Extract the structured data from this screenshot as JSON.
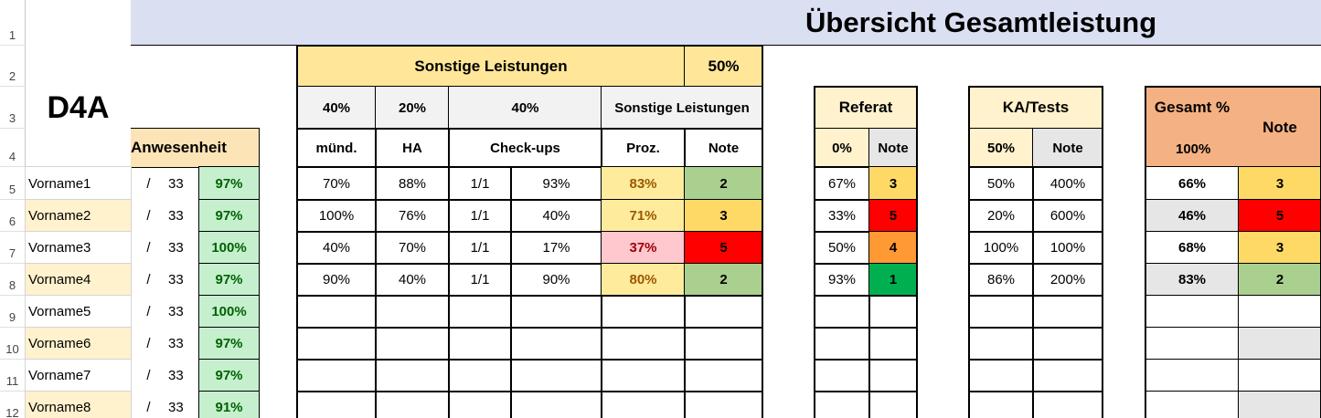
{
  "header": {
    "title": "Übersicht Gesamtleistung",
    "class_name": "D4A"
  },
  "row_numbers": [
    1,
    2,
    3,
    4,
    5,
    6,
    7,
    8,
    9,
    10,
    11,
    12
  ],
  "attendance": {
    "title": "Anwesenheit"
  },
  "sonstige": {
    "title": "Sonstige Leistungen",
    "weight": "50%",
    "weights": [
      "40%",
      "20%",
      "40%"
    ],
    "subtitle": "Sonstige Leistungen",
    "columns": [
      "münd.",
      "HA",
      "Check-ups",
      "Proz.",
      "Note"
    ]
  },
  "referat": {
    "title": "Referat",
    "weight": "0%",
    "note": "Note"
  },
  "ka": {
    "title": "KA/Tests",
    "weight": "50%",
    "note": "Note"
  },
  "gesamt": {
    "title": "Gesamt %",
    "weight": "100%",
    "note": "Note"
  },
  "grade_colors": {
    "1": "#00b050",
    "2": "#a9d08e",
    "3": "#ffd966",
    "4": "#ff9933",
    "5": "#ff0000"
  },
  "students": [
    {
      "name": "Vorname1",
      "slash": "/",
      "total": "33",
      "attendance": "97%",
      "muendl": "70%",
      "ha": "88%",
      "checkups_done": "1/1",
      "checkups": "93%",
      "proz": "83%",
      "proz_fill": "#ffeb9c",
      "proz_color": "#9c5700",
      "note": "2",
      "referat": "67%",
      "referat_note": "3",
      "ka": "50%",
      "ka_note": "400%",
      "gesamt": "66%",
      "gesamt_note": "3"
    },
    {
      "name": "Vorname2",
      "slash": "/",
      "total": "33",
      "attendance": "97%",
      "muendl": "100%",
      "ha": "76%",
      "checkups_done": "1/1",
      "checkups": "40%",
      "proz": "71%",
      "proz_fill": "#ffeb9c",
      "proz_color": "#9c5700",
      "note": "3",
      "referat": "33%",
      "referat_note": "5",
      "ka": "20%",
      "ka_note": "600%",
      "gesamt": "46%",
      "gesamt_note": "5"
    },
    {
      "name": "Vorname3",
      "slash": "/",
      "total": "33",
      "attendance": "100%",
      "muendl": "40%",
      "ha": "70%",
      "checkups_done": "1/1",
      "checkups": "17%",
      "proz": "37%",
      "proz_fill": "#ffc7ce",
      "proz_color": "#9c0006",
      "note": "5",
      "referat": "50%",
      "referat_note": "4",
      "ka": "100%",
      "ka_note": "100%",
      "gesamt": "68%",
      "gesamt_note": "3"
    },
    {
      "name": "Vorname4",
      "slash": "/",
      "total": "33",
      "attendance": "97%",
      "muendl": "90%",
      "ha": "40%",
      "checkups_done": "1/1",
      "checkups": "90%",
      "proz": "80%",
      "proz_fill": "#ffeb9c",
      "proz_color": "#9c5700",
      "note": "2",
      "referat": "93%",
      "referat_note": "1",
      "ka": "86%",
      "ka_note": "200%",
      "gesamt": "83%",
      "gesamt_note": "2"
    },
    {
      "name": "Vorname5",
      "slash": "/",
      "total": "33",
      "attendance": "100%"
    },
    {
      "name": "Vorname6",
      "slash": "/",
      "total": "33",
      "attendance": "97%"
    },
    {
      "name": "Vorname7",
      "slash": "/",
      "total": "33",
      "attendance": "97%"
    },
    {
      "name": "Vorname8",
      "slash": "/",
      "total": "33",
      "attendance": "91%"
    }
  ]
}
